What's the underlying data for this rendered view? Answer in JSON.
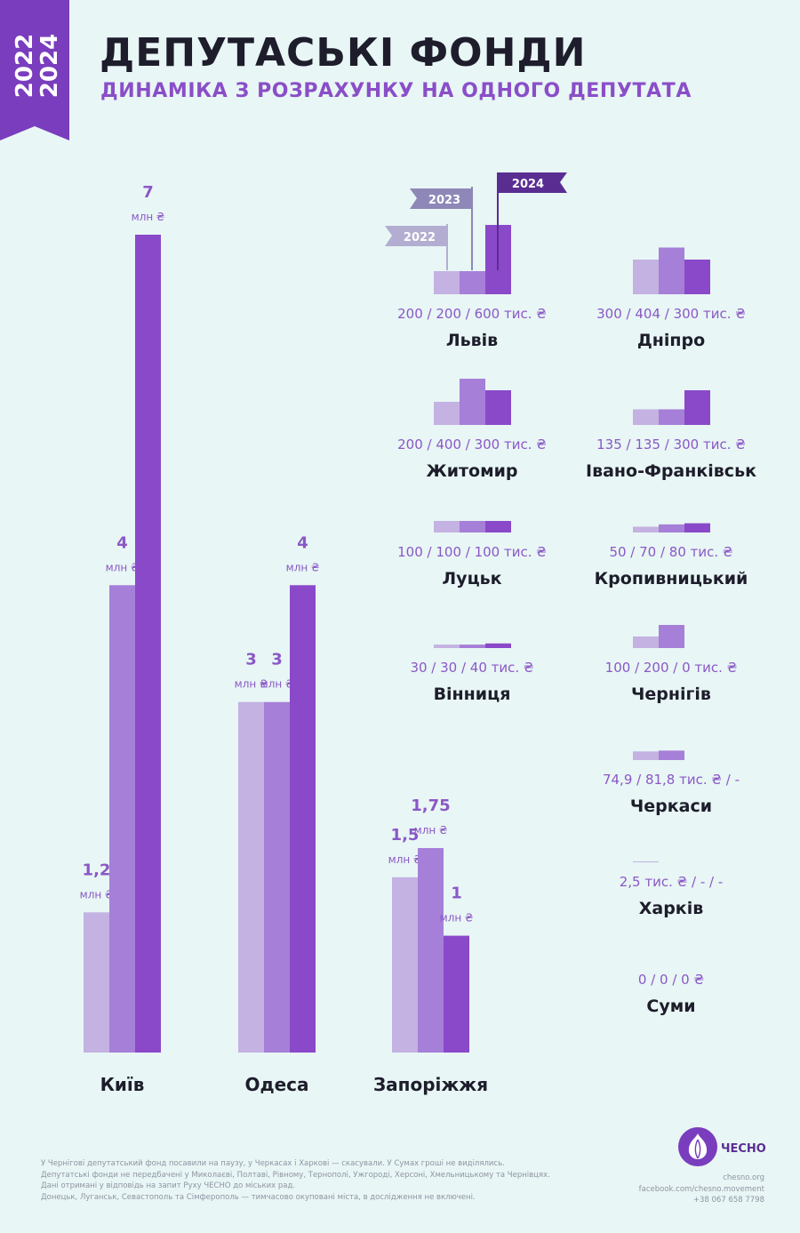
{
  "header": {
    "year_start": "2022",
    "year_end": "2024",
    "title": "ДЕПУТАСЬКІ ФОНДИ",
    "subtitle": "ДИНАМІКА З РОЗРАХУНКУ НА ОДНОГО ДЕПУТАТА"
  },
  "colors": {
    "y2022": "#c3b2e2",
    "y2023": "#a67fd8",
    "y2024": "#8a49c9",
    "ribbon": "#7a3dbd",
    "value_text": "#8b58c6",
    "city_text": "#1d1d2b",
    "flag_2022": "#b3aed1",
    "flag_2023": "#8d88b8",
    "flag_2024": "#5a2d93"
  },
  "chart_data": [
    {
      "type": "bar",
      "unit": "млн ₴",
      "categories": [
        "Київ",
        "Одеса",
        "Запоріжжя"
      ],
      "series": [
        {
          "name": "2022",
          "values": [
            1.2,
            3,
            1.5
          ],
          "labels": [
            "1,2",
            "3",
            "1,5"
          ]
        },
        {
          "name": "2023",
          "values": [
            4,
            3,
            1.75
          ],
          "labels": [
            "4",
            "3",
            "1,75"
          ]
        },
        {
          "name": "2024",
          "values": [
            7,
            4,
            1
          ],
          "labels": [
            "7",
            "4",
            "1"
          ]
        }
      ]
    },
    {
      "type": "bar",
      "unit": "тис. ₴",
      "legend": [
        "2022",
        "2023",
        "2024"
      ],
      "cities": [
        {
          "name": "Львів",
          "values": [
            200,
            200,
            600
          ],
          "label": "200 / 200 / 600 тис. ₴"
        },
        {
          "name": "Дніпро",
          "values": [
            300,
            404,
            300
          ],
          "label": "300 / 404 / 300 тис. ₴"
        },
        {
          "name": "Житомир",
          "values": [
            200,
            400,
            300
          ],
          "label": "200 / 400 / 300 тис. ₴"
        },
        {
          "name": "Івано-Франківськ",
          "values": [
            135,
            135,
            300
          ],
          "label": "135 / 135 / 300 тис. ₴"
        },
        {
          "name": "Луцьк",
          "values": [
            100,
            100,
            100
          ],
          "label": "100 / 100 / 100 тис. ₴"
        },
        {
          "name": "Кропивницький",
          "values": [
            50,
            70,
            80
          ],
          "label": "50 / 70 / 80 тис. ₴"
        },
        {
          "name": "Вінниця",
          "values": [
            30,
            30,
            40
          ],
          "label": "30 / 30 / 40 тис. ₴"
        },
        {
          "name": "Чернігів",
          "values": [
            100,
            200,
            0
          ],
          "label": "100 / 200 / 0 тис. ₴"
        },
        {
          "name": "Черкаси",
          "values": [
            74.9,
            81.8,
            null
          ],
          "label": "74,9 / 81,8 тис. ₴ / -"
        },
        {
          "name": "Харків",
          "values": [
            2.5,
            null,
            null
          ],
          "label": "2,5 тис. ₴ / - / -"
        },
        {
          "name": "Суми",
          "values": [
            0,
            0,
            0
          ],
          "label": "0 / 0 / 0 ₴"
        }
      ]
    }
  ],
  "footnotes": [
    "У Чернігові депутатський фонд посавили на паузу, у Черкасах і Харкові — скасували. У Сумах гроші не виділялись.",
    "Депутатські фонди не передбачені у Миколаєві, Полтаві, Рівному, Тернополі, Ужгороді, Херсоні, Хмельницькому та Чернівцях.",
    "Дані отримані у відповідь на запит Руху ЧЕСНО до міських рад.",
    "Донецьк, Луганськ, Севастополь та Сімферополь — тимчасово окуповані міста, в дослідження не включені."
  ],
  "brand": {
    "logo_text": "ЧЕСНО",
    "site": "chesno.org",
    "facebook": "facebook.com/chesno.movement",
    "phone": "+38 067 658 7798"
  }
}
